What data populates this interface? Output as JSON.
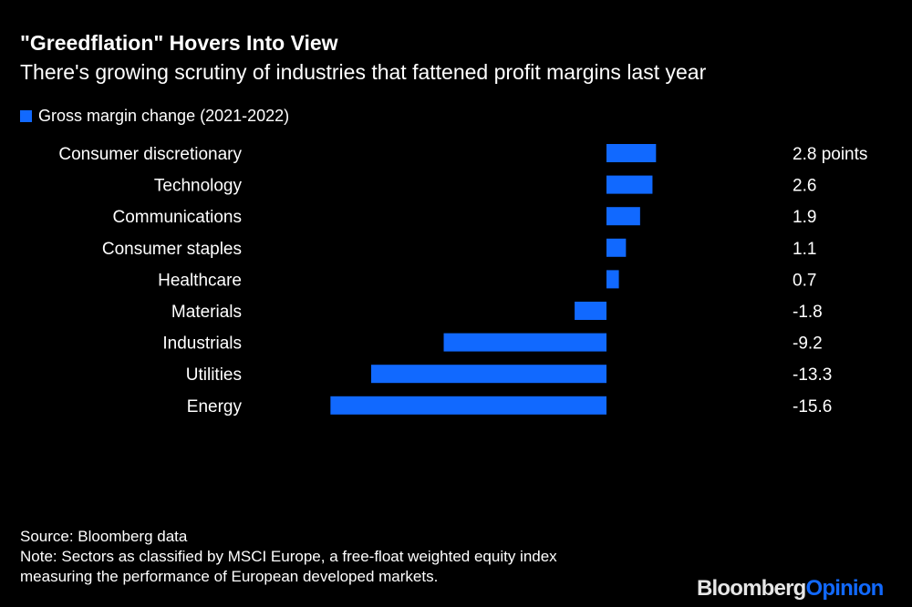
{
  "title": "\"Greedflation\" Hovers Into View",
  "subtitle": "There's growing scrutiny of industries that fattened profit margins last year",
  "footer": {
    "source": "Source: Bloomberg data",
    "note_line1": "Note: Sectors as classified by MSCI Europe, a free-float weighted equity index",
    "note_line2": "measuring the performance of European developed markets."
  },
  "logo": {
    "part1": "Bloomberg",
    "part2": "Opinion"
  },
  "colors": {
    "bar": "#1169ff",
    "background": "#000000",
    "text": "#ffffff"
  },
  "chart_data": {
    "type": "bar",
    "orientation": "horizontal",
    "legend": {
      "label": "Gross margin change (2021-2022)",
      "position": "top-left"
    },
    "categories": [
      "Consumer discretionary",
      "Technology",
      "Communications",
      "Consumer staples",
      "Healthcare",
      "Materials",
      "Industrials",
      "Utilities",
      "Energy"
    ],
    "series": [
      {
        "name": "Gross margin change (2021-2022)",
        "values": [
          2.8,
          2.6,
          1.9,
          1.1,
          0.7,
          -1.8,
          -9.2,
          -13.3,
          -15.6
        ]
      }
    ],
    "value_labels": [
      "2.8 points",
      "2.6",
      "1.9",
      "1.1",
      "0.7",
      "-1.8",
      "-9.2",
      "-13.3",
      "-15.6"
    ],
    "grid": false
  }
}
